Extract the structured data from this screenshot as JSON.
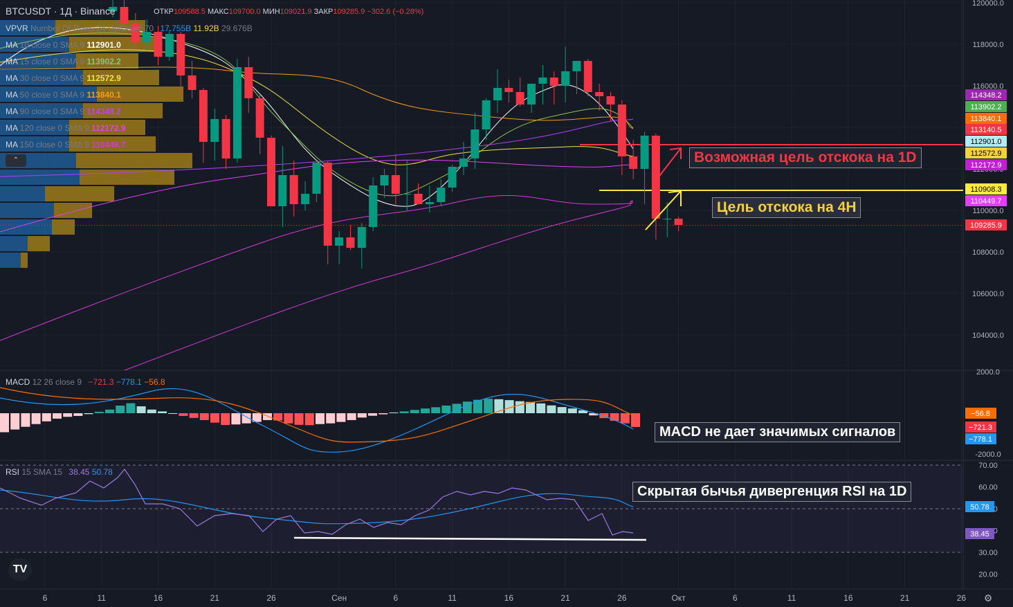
{
  "header": {
    "symbol": "BTCUSDT · 1Д · Binance",
    "open_label": "ОТКР",
    "open": "109588.5",
    "high_label": "МАКС",
    "high": "109700.0",
    "low_label": "МИН",
    "low": "109021.9",
    "close_label": "ЗАКР",
    "close": "109285.9",
    "change": "−302.6 (−0.28%)"
  },
  "legend": {
    "vpvr": {
      "name": "VPVR",
      "params": "Number Of Rows 24 Up/Down 70",
      "v1": "17.755B",
      "v2": "11.92B",
      "v3": "29.676B"
    },
    "ma": [
      {
        "name": "MA",
        "params": "10 close 0 SMA 9",
        "value": "112901.0",
        "color": "#ffffff"
      },
      {
        "name": "MA",
        "params": "15 close 0 SMA 9",
        "value": "113902.2",
        "color": "#7fc97f"
      },
      {
        "name": "MA",
        "params": "30 close 0 SMA 9",
        "value": "112572.9",
        "color": "#f0e442"
      },
      {
        "name": "MA",
        "params": "50 close 0 SMA 9",
        "value": "113840.1",
        "color": "#f39c12"
      },
      {
        "name": "MA",
        "params": "90 close 0 SMA 9",
        "value": "114348.2",
        "color": "#c040ff"
      },
      {
        "name": "MA",
        "params": "120 close 0 SMA 9",
        "value": "112172.9",
        "color": "#e040fb"
      },
      {
        "name": "MA",
        "params": "150 close 0 SMA 9",
        "value": "110449.7",
        "color": "#d63ad6"
      }
    ],
    "macd": {
      "name": "MACD",
      "params": "12 26 close 9",
      "v1": "−721.3",
      "v2": "−778.1",
      "v3": "−56.8"
    },
    "rsi": {
      "name": "RSI",
      "params": "15 SMA 15",
      "v1": "38.45",
      "v2": "50.78"
    }
  },
  "annotations": {
    "target_1d": "Возможная цель отскока на 1D",
    "target_4h": "Цель отскока на 4H",
    "macd_note": "MACD не дает значимых сигналов",
    "rsi_note": "Скрытая бычья дивергенция RSI на 1D"
  },
  "logo": "TV",
  "chart_data": [
    {
      "type": "candlestick",
      "panel": "price",
      "symbol": "BTCUSDT",
      "interval": "1Д",
      "ylim": [
        103000,
        120000
      ],
      "y_ticks": [
        "120000.0",
        "118000.0",
        "116000.0",
        "114000.0",
        "112000.0",
        "110000.0",
        "108000.0",
        "106000.0",
        "104000.0"
      ],
      "x_ticks": [
        "6",
        "11",
        "16",
        "21",
        "26",
        "Сен",
        "6",
        "11",
        "16",
        "21",
        "26",
        "Окт",
        "6",
        "11",
        "16",
        "21",
        "26"
      ],
      "x_tick_days": [
        6,
        11,
        16,
        21,
        26,
        32,
        37,
        42,
        47,
        52,
        57,
        62,
        67,
        72,
        77,
        82,
        87
      ],
      "candles": [
        [
          12,
          119600,
          120300,
          119300,
          119800
        ],
        [
          13,
          119800,
          120300,
          118800,
          119000
        ],
        [
          14,
          119000,
          119500,
          117800,
          118100
        ],
        [
          15,
          118100,
          119200,
          117700,
          118600
        ],
        [
          16,
          118600,
          118900,
          117000,
          117400
        ],
        [
          17,
          117400,
          118700,
          117200,
          118500
        ],
        [
          18,
          118500,
          118600,
          115600,
          116500
        ],
        [
          19,
          116500,
          117200,
          115400,
          115800
        ],
        [
          20,
          115800,
          115900,
          112300,
          113300
        ],
        [
          21,
          113300,
          114900,
          112400,
          114400
        ],
        [
          22,
          114400,
          114600,
          112000,
          112500
        ],
        [
          23,
          112500,
          117300,
          112300,
          116900
        ],
        [
          24,
          116900,
          117400,
          114700,
          115400
        ],
        [
          25,
          115400,
          115600,
          112700,
          113500
        ],
        [
          26,
          113500,
          113600,
          110300,
          110200
        ],
        [
          27,
          110200,
          113100,
          109200,
          111700
        ],
        [
          28,
          111700,
          112400,
          109700,
          110300
        ],
        [
          29,
          110300,
          111400,
          110000,
          110800
        ],
        [
          30,
          110800,
          112300,
          110400,
          112300
        ],
        [
          31,
          112300,
          112400,
          107400,
          108300
        ],
        [
          32,
          108300,
          109000,
          107400,
          108700
        ],
        [
          33,
          108700,
          109300,
          108100,
          108200
        ],
        [
          34,
          108200,
          109400,
          107200,
          109200
        ],
        [
          35,
          109200,
          111600,
          109000,
          111200
        ],
        [
          36,
          111200,
          112000,
          110600,
          111700
        ],
        [
          37,
          111700,
          112700,
          110300,
          110800
        ],
        [
          38,
          110800,
          112400,
          110000,
          110800
        ],
        [
          39,
          110800,
          111300,
          110300,
          110300
        ],
        [
          40,
          110300,
          111200,
          109900,
          110400
        ],
        [
          41,
          110400,
          111500,
          110200,
          111100
        ],
        [
          42,
          111100,
          112200,
          110900,
          112100
        ],
        [
          43,
          112100,
          113300,
          111700,
          112500
        ],
        [
          44,
          112500,
          114700,
          112000,
          113900
        ],
        [
          45,
          113900,
          115400,
          113400,
          115300
        ],
        [
          46,
          115300,
          116800,
          114700,
          115900
        ],
        [
          47,
          115900,
          116300,
          115200,
          115700
        ],
        [
          48,
          115700,
          116400,
          115000,
          115100
        ],
        [
          49,
          115100,
          116000,
          114700,
          116100
        ],
        [
          50,
          116100,
          117000,
          115100,
          116400
        ],
        [
          51,
          116400,
          116700,
          115100,
          116000
        ],
        [
          52,
          116000,
          117900,
          115200,
          116700
        ],
        [
          53,
          116700,
          117100,
          115600,
          117200
        ],
        [
          54,
          117200,
          117300,
          115500,
          115700
        ],
        [
          55,
          115700,
          116100,
          114800,
          115500
        ],
        [
          56,
          115500,
          115700,
          114300,
          115100
        ],
        [
          57,
          115100,
          115300,
          111700,
          112600
        ],
        [
          58,
          112600,
          113400,
          111500,
          112000
        ],
        [
          59,
          112000,
          113800,
          110300,
          113600
        ],
        [
          60,
          113600,
          113700,
          108600,
          109600
        ],
        [
          61,
          109600,
          110400,
          108700,
          109600
        ],
        [
          62,
          109600,
          109700,
          109000,
          109300
        ]
      ],
      "moving_averages": [
        {
          "name": "MA 10",
          "value": 112901.0,
          "color": "#ffffff"
        },
        {
          "name": "MA 15",
          "value": 113902.2,
          "color": "#7fc97f"
        },
        {
          "name": "MA 30",
          "value": 112572.9,
          "color": "#f0e442"
        },
        {
          "name": "MA 50",
          "value": 113840.1,
          "color": "#f39c12"
        },
        {
          "name": "MA 90",
          "value": 114348.2,
          "color": "#c040ff"
        },
        {
          "name": "MA 120",
          "value": 112172.9,
          "color": "#e040fb"
        },
        {
          "name": "MA 150",
          "value": 110449.7,
          "color": "#d63ad6"
        }
      ],
      "price_labels": [
        {
          "value": 114348.2,
          "label": "114348.2",
          "color": "#9c27b0"
        },
        {
          "value": 113902.2,
          "label": "113902.2",
          "color": "#4caf50"
        },
        {
          "value": 113840.1,
          "label": "113840.1",
          "color": "#ff6d00"
        },
        {
          "value": 113140.5,
          "label": "113140.5",
          "color": "#f23645"
        },
        {
          "value": 112901.0,
          "label": "112901.0",
          "color": "#b2ebf2"
        },
        {
          "value": 112572.9,
          "label": "112572.9",
          "color": "#f5d142"
        },
        {
          "value": 112172.9,
          "label": "112172.9",
          "color": "#c21fd4"
        },
        {
          "value": 110908.3,
          "label": "110908.3",
          "color": "#ffeb3b"
        },
        {
          "value": 110449.7,
          "label": "110449.7",
          "color": "#e040fb"
        },
        {
          "value": 109285.9,
          "label": "109285.9",
          "color": "#f23645"
        }
      ],
      "levels": [
        {
          "value": 113140.5,
          "color": "#f23645"
        },
        {
          "value": 110908.3,
          "color": "#ffeb3b"
        }
      ],
      "current_price": 109285.9
    },
    {
      "type": "histogram",
      "panel": "macd",
      "ylim": [
        -2200,
        2000
      ],
      "y_ticks": [
        "2000.0",
        "-2000.0"
      ],
      "macd_value": -778.1,
      "signal_value": -721.3,
      "histogram_value": -56.8
    },
    {
      "type": "line",
      "panel": "rsi",
      "ylim": [
        15,
        72
      ],
      "y_ticks": [
        "70.00",
        "60.00",
        "50.00",
        "40.00",
        "30.00",
        "20.00"
      ],
      "rsi_value": 38.45,
      "rsi_sma_value": 50.78,
      "band": [
        30,
        70
      ]
    }
  ]
}
